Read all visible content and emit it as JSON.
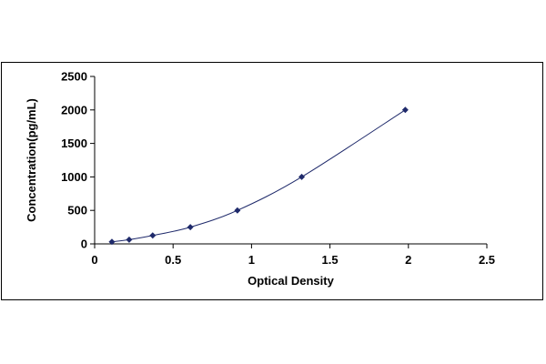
{
  "chart_data": {
    "type": "scatter",
    "xlabel": "Optical Density",
    "ylabel": "Concentration(pg/mL)",
    "xlim": [
      0,
      2.5
    ],
    "ylim": [
      0,
      2500
    ],
    "x_ticks": [
      "0",
      "0.5",
      "1",
      "1.5",
      "2",
      "2.5"
    ],
    "y_ticks": [
      "0",
      "500",
      "1000",
      "1500",
      "2000",
      "2500"
    ],
    "series": [
      {
        "marker": "diamond",
        "color": "#1f2a6b",
        "line": "smooth",
        "x": [
          0.11,
          0.22,
          0.37,
          0.61,
          0.91,
          1.32,
          1.98
        ],
        "y": [
          31.25,
          62.5,
          125,
          250,
          500,
          1000,
          2000
        ]
      }
    ],
    "grid": false,
    "legend": false
  }
}
